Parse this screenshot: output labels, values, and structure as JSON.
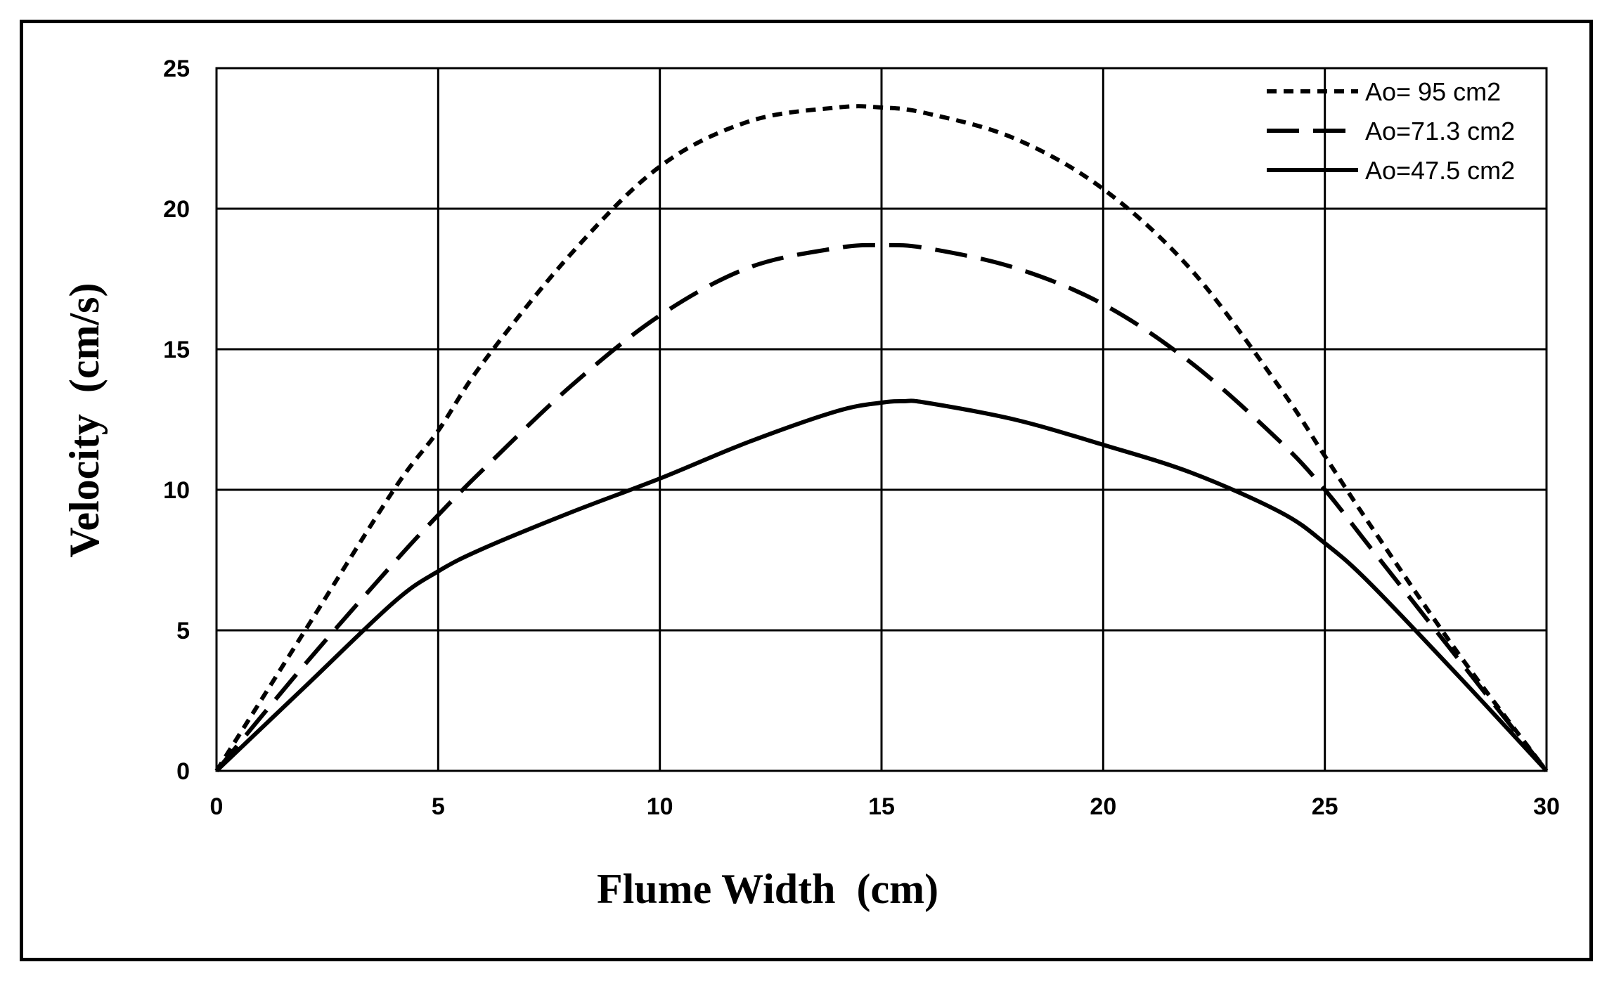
{
  "chart_data": {
    "type": "line",
    "title": "",
    "xlabel": "Flume Width  (cm)",
    "ylabel": "Velocity  (cm/s)",
    "xlim": [
      0,
      30
    ],
    "ylim": [
      0,
      25
    ],
    "xticks": [
      0,
      5,
      10,
      15,
      20,
      25,
      30
    ],
    "yticks": [
      0,
      5,
      10,
      15,
      20,
      25
    ],
    "grid": true,
    "legend_position": "top-right",
    "series": [
      {
        "name": "Ao= 95 cm2",
        "style": "dotted",
        "color": "#000000",
        "x": [
          0,
          2,
          4,
          5,
          6,
          8,
          10,
          12,
          14,
          15,
          16,
          18,
          20,
          22,
          24,
          25,
          26,
          28,
          30
        ],
        "y": [
          0,
          5,
          10,
          12.1,
          14.5,
          18.4,
          21.5,
          23.1,
          23.6,
          23.6,
          23.4,
          22.5,
          20.7,
          17.8,
          13.6,
          11.2,
          8.8,
          4.2,
          0
        ]
      },
      {
        "name": "Ao=71.3 cm2",
        "style": "dashed",
        "color": "#000000",
        "x": [
          0,
          2,
          4,
          5,
          6,
          8,
          10,
          12,
          14,
          15,
          16,
          18,
          20,
          22,
          24,
          25,
          26,
          28,
          30
        ],
        "y": [
          0,
          3.8,
          7.4,
          9.1,
          10.7,
          13.7,
          16.2,
          17.9,
          18.6,
          18.7,
          18.6,
          17.9,
          16.6,
          14.5,
          11.7,
          10.0,
          8.0,
          4.0,
          0
        ]
      },
      {
        "name": "Ao=47.5 cm2",
        "style": "solid",
        "color": "#000000",
        "x": [
          0,
          2,
          4,
          5,
          6,
          8,
          10,
          12,
          14,
          15,
          15.5,
          16,
          18,
          20,
          22,
          24,
          25,
          26,
          28,
          30
        ],
        "y": [
          0,
          3.0,
          6.0,
          7.1,
          7.9,
          9.2,
          10.4,
          11.7,
          12.8,
          13.1,
          13.15,
          13.1,
          12.5,
          11.6,
          10.6,
          9.2,
          8.1,
          6.7,
          3.4,
          0
        ]
      }
    ]
  }
}
